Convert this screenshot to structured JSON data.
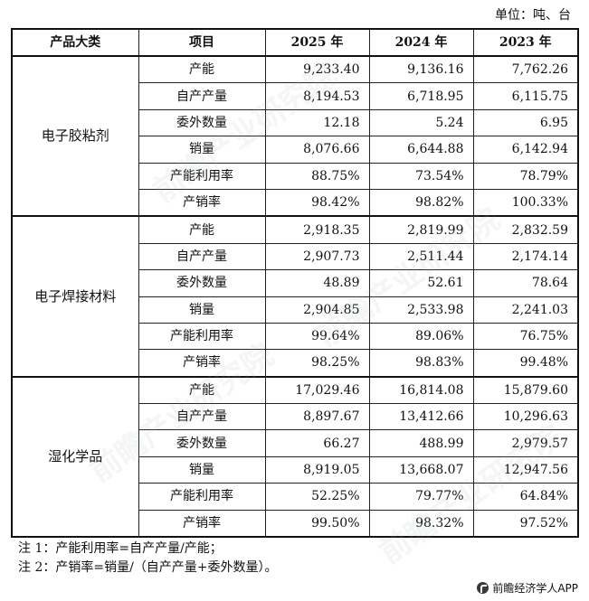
{
  "unit_label": "单位：吨、台",
  "headers": [
    "产品大类",
    "项目",
    "2025 年",
    "2024 年",
    "2023 年"
  ],
  "groups": [
    {
      "category": "电子胶粘剂",
      "rows": [
        {
          "item": "产能",
          "v2025": "9,233.40",
          "v2024": "9,136.16",
          "v2023": "7,762.26"
        },
        {
          "item": "自产产量",
          "v2025": "8,194.53",
          "v2024": "6,718.95",
          "v2023": "6,115.75"
        },
        {
          "item": "委外数量",
          "v2025": "12.18",
          "v2024": "5.24",
          "v2023": "6.95"
        },
        {
          "item": "销量",
          "v2025": "8,076.66",
          "v2024": "6,644.88",
          "v2023": "6,142.94"
        },
        {
          "item": "产能利用率",
          "v2025": "88.75%",
          "v2024": "73.54%",
          "v2023": "78.79%"
        },
        {
          "item": "产销率",
          "v2025": "98.42%",
          "v2024": "98.82%",
          "v2023": "100.33%"
        }
      ]
    },
    {
      "category": "电子焊接材料",
      "rows": [
        {
          "item": "产能",
          "v2025": "2,918.35",
          "v2024": "2,819.99",
          "v2023": "2,832.59"
        },
        {
          "item": "自产产量",
          "v2025": "2,907.73",
          "v2024": "2,511.44",
          "v2023": "2,174.14"
        },
        {
          "item": "委外数量",
          "v2025": "48.89",
          "v2024": "52.61",
          "v2023": "78.64"
        },
        {
          "item": "销量",
          "v2025": "2,904.85",
          "v2024": "2,533.98",
          "v2023": "2,241.03"
        },
        {
          "item": "产能利用率",
          "v2025": "99.64%",
          "v2024": "89.06%",
          "v2023": "76.75%"
        },
        {
          "item": "产销率",
          "v2025": "98.25%",
          "v2024": "98.83%",
          "v2023": "99.48%"
        }
      ]
    },
    {
      "category": "湿化学品",
      "rows": [
        {
          "item": "产能",
          "v2025": "17,029.46",
          "v2024": "16,814.08",
          "v2023": "15,879.60"
        },
        {
          "item": "自产产量",
          "v2025": "8,897.67",
          "v2024": "13,412.66",
          "v2023": "10,296.63"
        },
        {
          "item": "委外数量",
          "v2025": "66.27",
          "v2024": "488.99",
          "v2023": "2,979.57"
        },
        {
          "item": "销量",
          "v2025": "8,919.05",
          "v2024": "13,668.07",
          "v2023": "12,947.56"
        },
        {
          "item": "产能利用率",
          "v2025": "52.25%",
          "v2024": "79.77%",
          "v2023": "64.84%"
        },
        {
          "item": "产销率",
          "v2025": "99.50%",
          "v2024": "98.32%",
          "v2023": "97.52%"
        }
      ]
    }
  ],
  "notes": [
    "注 1：产能利用率=自产产量/产能；",
    "注 2：产销率=销量/（自产产量+委外数量）。"
  ],
  "brand": {
    "text": "前瞻经济学人APP",
    "icon": "qianzhan-logo-icon"
  },
  "watermark": "前瞻产业研究院"
}
